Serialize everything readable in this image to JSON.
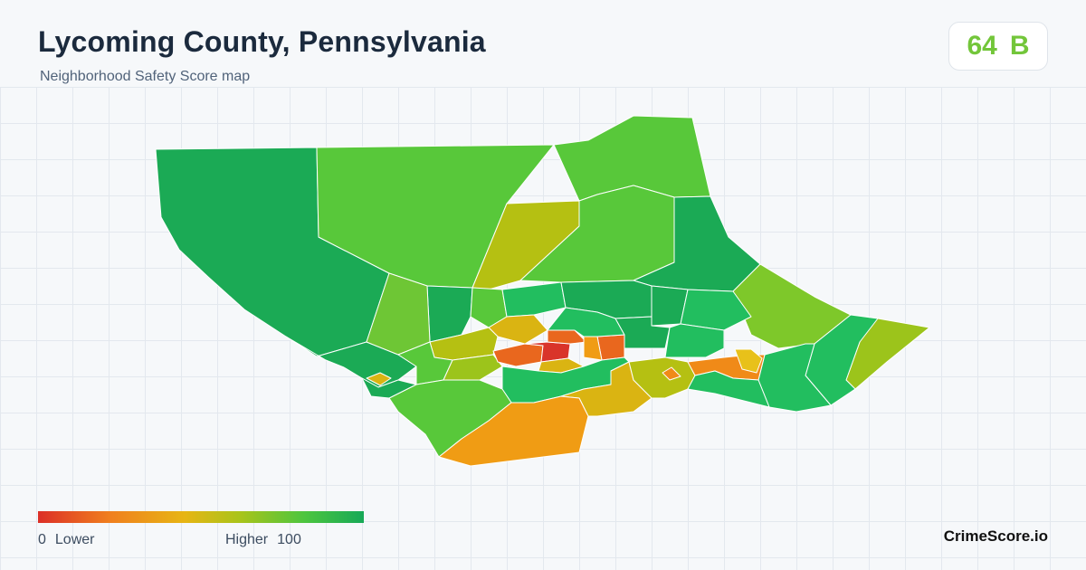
{
  "header": {
    "title": "Lycoming County, Pennsylvania",
    "subtitle": "Neighborhood Safety Score map"
  },
  "score": {
    "value": "64",
    "grade": "B",
    "color": "#73c63a"
  },
  "legend": {
    "low_value": "0",
    "low_label": "Lower",
    "high_label": "Higher",
    "high_value": "100",
    "colors": [
      "#dc2f27",
      "#f07f1e",
      "#e7b514",
      "#a9c41a",
      "#4cc53f",
      "#17a957"
    ]
  },
  "brand": "CrimeScore.io",
  "palette": {
    "dark_green": "#1baa55",
    "green": "#22be5f",
    "light_green": "#58c83a",
    "yellow_green": "#9cc41b",
    "olive": "#b5c012",
    "mustard": "#dab412",
    "orange": "#f09c14",
    "red_orange": "#e9671e",
    "red": "#d9342a"
  }
}
